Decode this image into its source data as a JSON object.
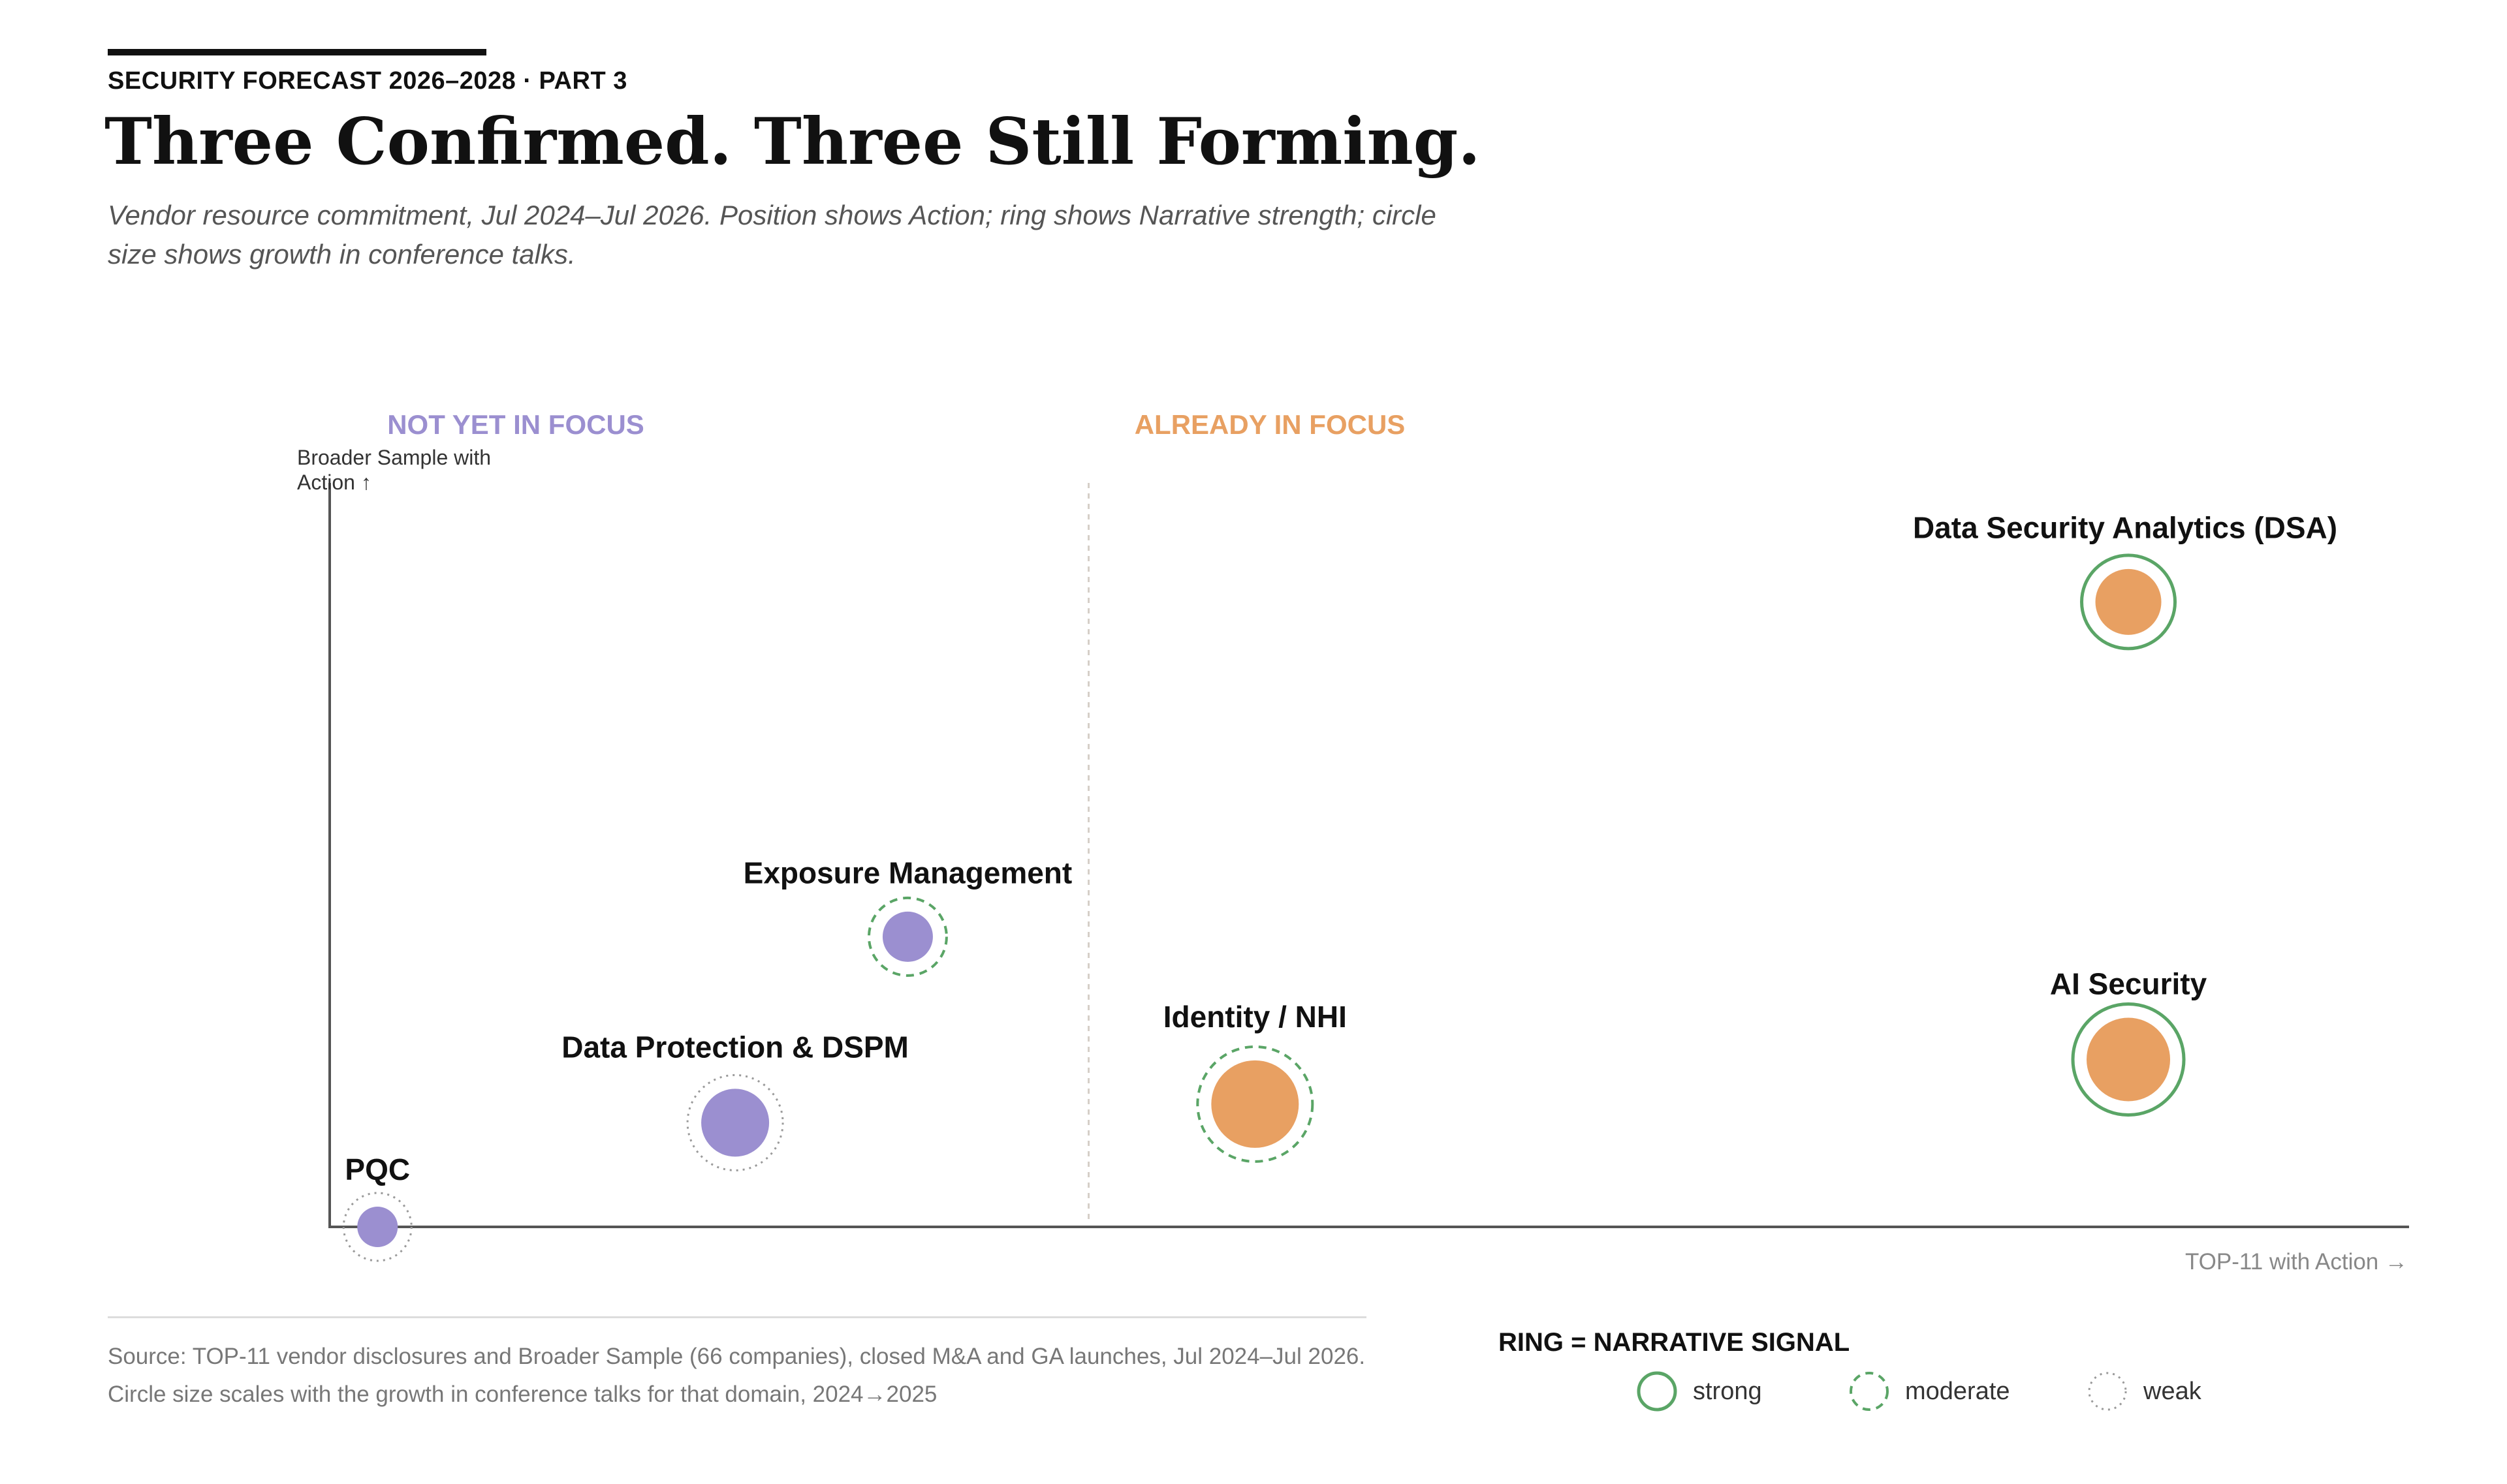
{
  "header": {
    "kicker": "SECURITY FORECAST 2026–2028 · PART 3",
    "title": "Three Confirmed. Three Still Forming.",
    "subtitle": "Vendor resource commitment, Jul 2024–Jul 2026. Position shows Action; ring shows Narrative strength; circle size shows growth in conference talks."
  },
  "colors": {
    "not_in_focus": "#9b8fd0",
    "already_in_focus": "#e8a062",
    "ring": "#5aa566",
    "axis": "#555555"
  },
  "chart_data": {
    "type": "scatter",
    "title": "",
    "xlabel": "TOP-11 with Action →",
    "ylabel": "Broader Sample with Action ↑",
    "xlim": [
      0,
      100
    ],
    "ylim": [
      0,
      100
    ],
    "grid": false,
    "divider_x": 36.5,
    "zones": [
      {
        "label": "NOT YET IN FOCUS",
        "color": "#9b8fd0"
      },
      {
        "label": "ALREADY IN FOCUS",
        "color": "#e8a062"
      }
    ],
    "points": [
      {
        "label": "PQC",
        "x": 2.3,
        "y": 0,
        "zone": "not_in_focus",
        "ring": "weak",
        "growth": 1
      },
      {
        "label": "Data Protection & DSPM",
        "x": 19.5,
        "y": 14,
        "zone": "not_in_focus",
        "ring": "weak",
        "growth": 2.4
      },
      {
        "label": "Exposure Management",
        "x": 27.8,
        "y": 39,
        "zone": "not_in_focus",
        "ring": "moderate",
        "growth": 1.5
      },
      {
        "label": "Identity / NHI",
        "x": 44.5,
        "y": 16.5,
        "zone": "already_in_focus",
        "ring": "moderate",
        "growth": 3.4
      },
      {
        "label": "AI Security",
        "x": 86.5,
        "y": 22.5,
        "zone": "already_in_focus",
        "ring": "strong",
        "growth": 3.2
      },
      {
        "label": "Data Security Analytics (DSA)",
        "x": 86.5,
        "y": 84,
        "zone": "already_in_focus",
        "ring": "strong",
        "growth": 2.3
      }
    ]
  },
  "footer": {
    "source_line1": "Source: TOP-11 vendor disclosures and Broader Sample (66 companies), closed M&A and GA launches, Jul 2024–Jul 2026.",
    "source_line2": "Circle size scales with the growth in conference talks for that domain, 2024→2025"
  },
  "legend": {
    "title": "RING = NARRATIVE SIGNAL",
    "items": [
      {
        "key": "strong",
        "label": "strong"
      },
      {
        "key": "moderate",
        "label": "moderate"
      },
      {
        "key": "weak",
        "label": "weak"
      }
    ]
  }
}
